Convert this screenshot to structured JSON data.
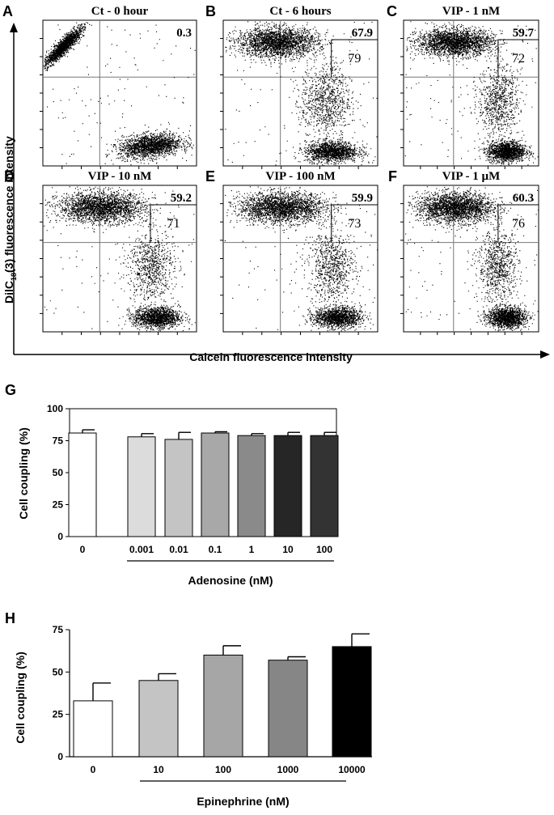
{
  "figure": {
    "y_axis_label_main": "DilC",
    "y_axis_label_sub": "18",
    "y_axis_label_rest": "(3) fluorescence intensity",
    "x_axis_label": "Calcein fluorescence intensity"
  },
  "chart_data": [
    {
      "type": "scatter",
      "letter": "A",
      "title": "Ct - 0 hour",
      "top_right_value": "0.3",
      "box_value": "",
      "clusters": [
        {
          "cx": 0.13,
          "cy": 0.82,
          "rx": 0.1,
          "ry": 0.11,
          "count": 1700,
          "tilt": 0.6
        },
        {
          "cx": 0.7,
          "cy": 0.14,
          "rx": 0.2,
          "ry": 0.08,
          "count": 1900,
          "tilt": 0.2
        }
      ]
    },
    {
      "type": "scatter",
      "letter": "B",
      "title": "Ct - 6 hours",
      "top_right_value": "67.9",
      "box_value": "79",
      "clusters": [
        {
          "cx": 0.35,
          "cy": 0.85,
          "rx": 0.26,
          "ry": 0.1,
          "count": 2400,
          "tilt": 0.0
        },
        {
          "cx": 0.66,
          "cy": 0.45,
          "rx": 0.16,
          "ry": 0.25,
          "count": 900,
          "tilt": 0.0
        },
        {
          "cx": 0.7,
          "cy": 0.1,
          "rx": 0.17,
          "ry": 0.07,
          "count": 1500,
          "tilt": 0.0
        }
      ]
    },
    {
      "type": "scatter",
      "letter": "C",
      "title": "VIP - 1 nM",
      "top_right_value": "59.7",
      "box_value": "72",
      "clusters": [
        {
          "cx": 0.38,
          "cy": 0.85,
          "rx": 0.28,
          "ry": 0.09,
          "count": 2400,
          "tilt": 0.0
        },
        {
          "cx": 0.7,
          "cy": 0.45,
          "rx": 0.15,
          "ry": 0.24,
          "count": 800,
          "tilt": 0.0
        },
        {
          "cx": 0.76,
          "cy": 0.1,
          "rx": 0.14,
          "ry": 0.07,
          "count": 1500,
          "tilt": 0.0
        }
      ]
    },
    {
      "type": "scatter",
      "letter": "D",
      "title": "VIP - 10 nM",
      "top_right_value": "59.2",
      "box_value": "71",
      "clusters": [
        {
          "cx": 0.38,
          "cy": 0.85,
          "rx": 0.28,
          "ry": 0.1,
          "count": 2400,
          "tilt": 0.0
        },
        {
          "cx": 0.7,
          "cy": 0.45,
          "rx": 0.15,
          "ry": 0.24,
          "count": 800,
          "tilt": 0.0
        },
        {
          "cx": 0.74,
          "cy": 0.1,
          "rx": 0.15,
          "ry": 0.07,
          "count": 1500,
          "tilt": 0.0
        }
      ]
    },
    {
      "type": "scatter",
      "letter": "E",
      "title": "VIP - 100 nM",
      "top_right_value": "59.9",
      "box_value": "73",
      "clusters": [
        {
          "cx": 0.38,
          "cy": 0.85,
          "rx": 0.28,
          "ry": 0.1,
          "count": 2400,
          "tilt": 0.0
        },
        {
          "cx": 0.7,
          "cy": 0.45,
          "rx": 0.15,
          "ry": 0.24,
          "count": 800,
          "tilt": 0.0
        },
        {
          "cx": 0.74,
          "cy": 0.1,
          "rx": 0.15,
          "ry": 0.07,
          "count": 1500,
          "tilt": 0.0
        }
      ]
    },
    {
      "type": "scatter",
      "letter": "F",
      "title": "VIP - 1 µM",
      "top_right_value": "60.3",
      "box_value": "76",
      "clusters": [
        {
          "cx": 0.38,
          "cy": 0.85,
          "rx": 0.28,
          "ry": 0.1,
          "count": 2400,
          "tilt": 0.0
        },
        {
          "cx": 0.7,
          "cy": 0.45,
          "rx": 0.15,
          "ry": 0.24,
          "count": 800,
          "tilt": 0.0
        },
        {
          "cx": 0.76,
          "cy": 0.1,
          "rx": 0.14,
          "ry": 0.07,
          "count": 1500,
          "tilt": 0.0
        }
      ]
    },
    {
      "type": "bar",
      "letter": "G",
      "ylabel": "Cell coupling (%)",
      "xlabel": "Adenosine (nM)",
      "ylim": [
        0,
        100
      ],
      "yticks": [
        "0",
        "25",
        "50",
        "75",
        "100"
      ],
      "categories": [
        "0",
        "0.001",
        "0.01",
        "0.1",
        "1",
        "10",
        "100"
      ],
      "values": [
        81,
        78,
        76,
        81,
        79,
        79,
        79
      ],
      "errors": [
        2.5,
        2.5,
        5.5,
        1,
        1.5,
        2.5,
        2.5
      ],
      "colors": [
        "#ffffff",
        "#dcdcdc",
        "#c4c4c4",
        "#a8a8a8",
        "#8a8a8a",
        "#262626",
        "#333333"
      ]
    },
    {
      "type": "bar",
      "letter": "H",
      "ylabel": "Cell coupling (%)",
      "xlabel": "Epinephrine (nM)",
      "ylim": [
        0,
        75
      ],
      "yticks": [
        "0",
        "25",
        "50",
        "75"
      ],
      "categories": [
        "0",
        "10",
        "100",
        "1000",
        "10000"
      ],
      "values": [
        33,
        45,
        60,
        57,
        65
      ],
      "errors": [
        10.5,
        4,
        5.5,
        2,
        7.5
      ],
      "colors": [
        "#ffffff",
        "#c4c4c4",
        "#a6a6a6",
        "#868686",
        "#000000"
      ]
    }
  ]
}
